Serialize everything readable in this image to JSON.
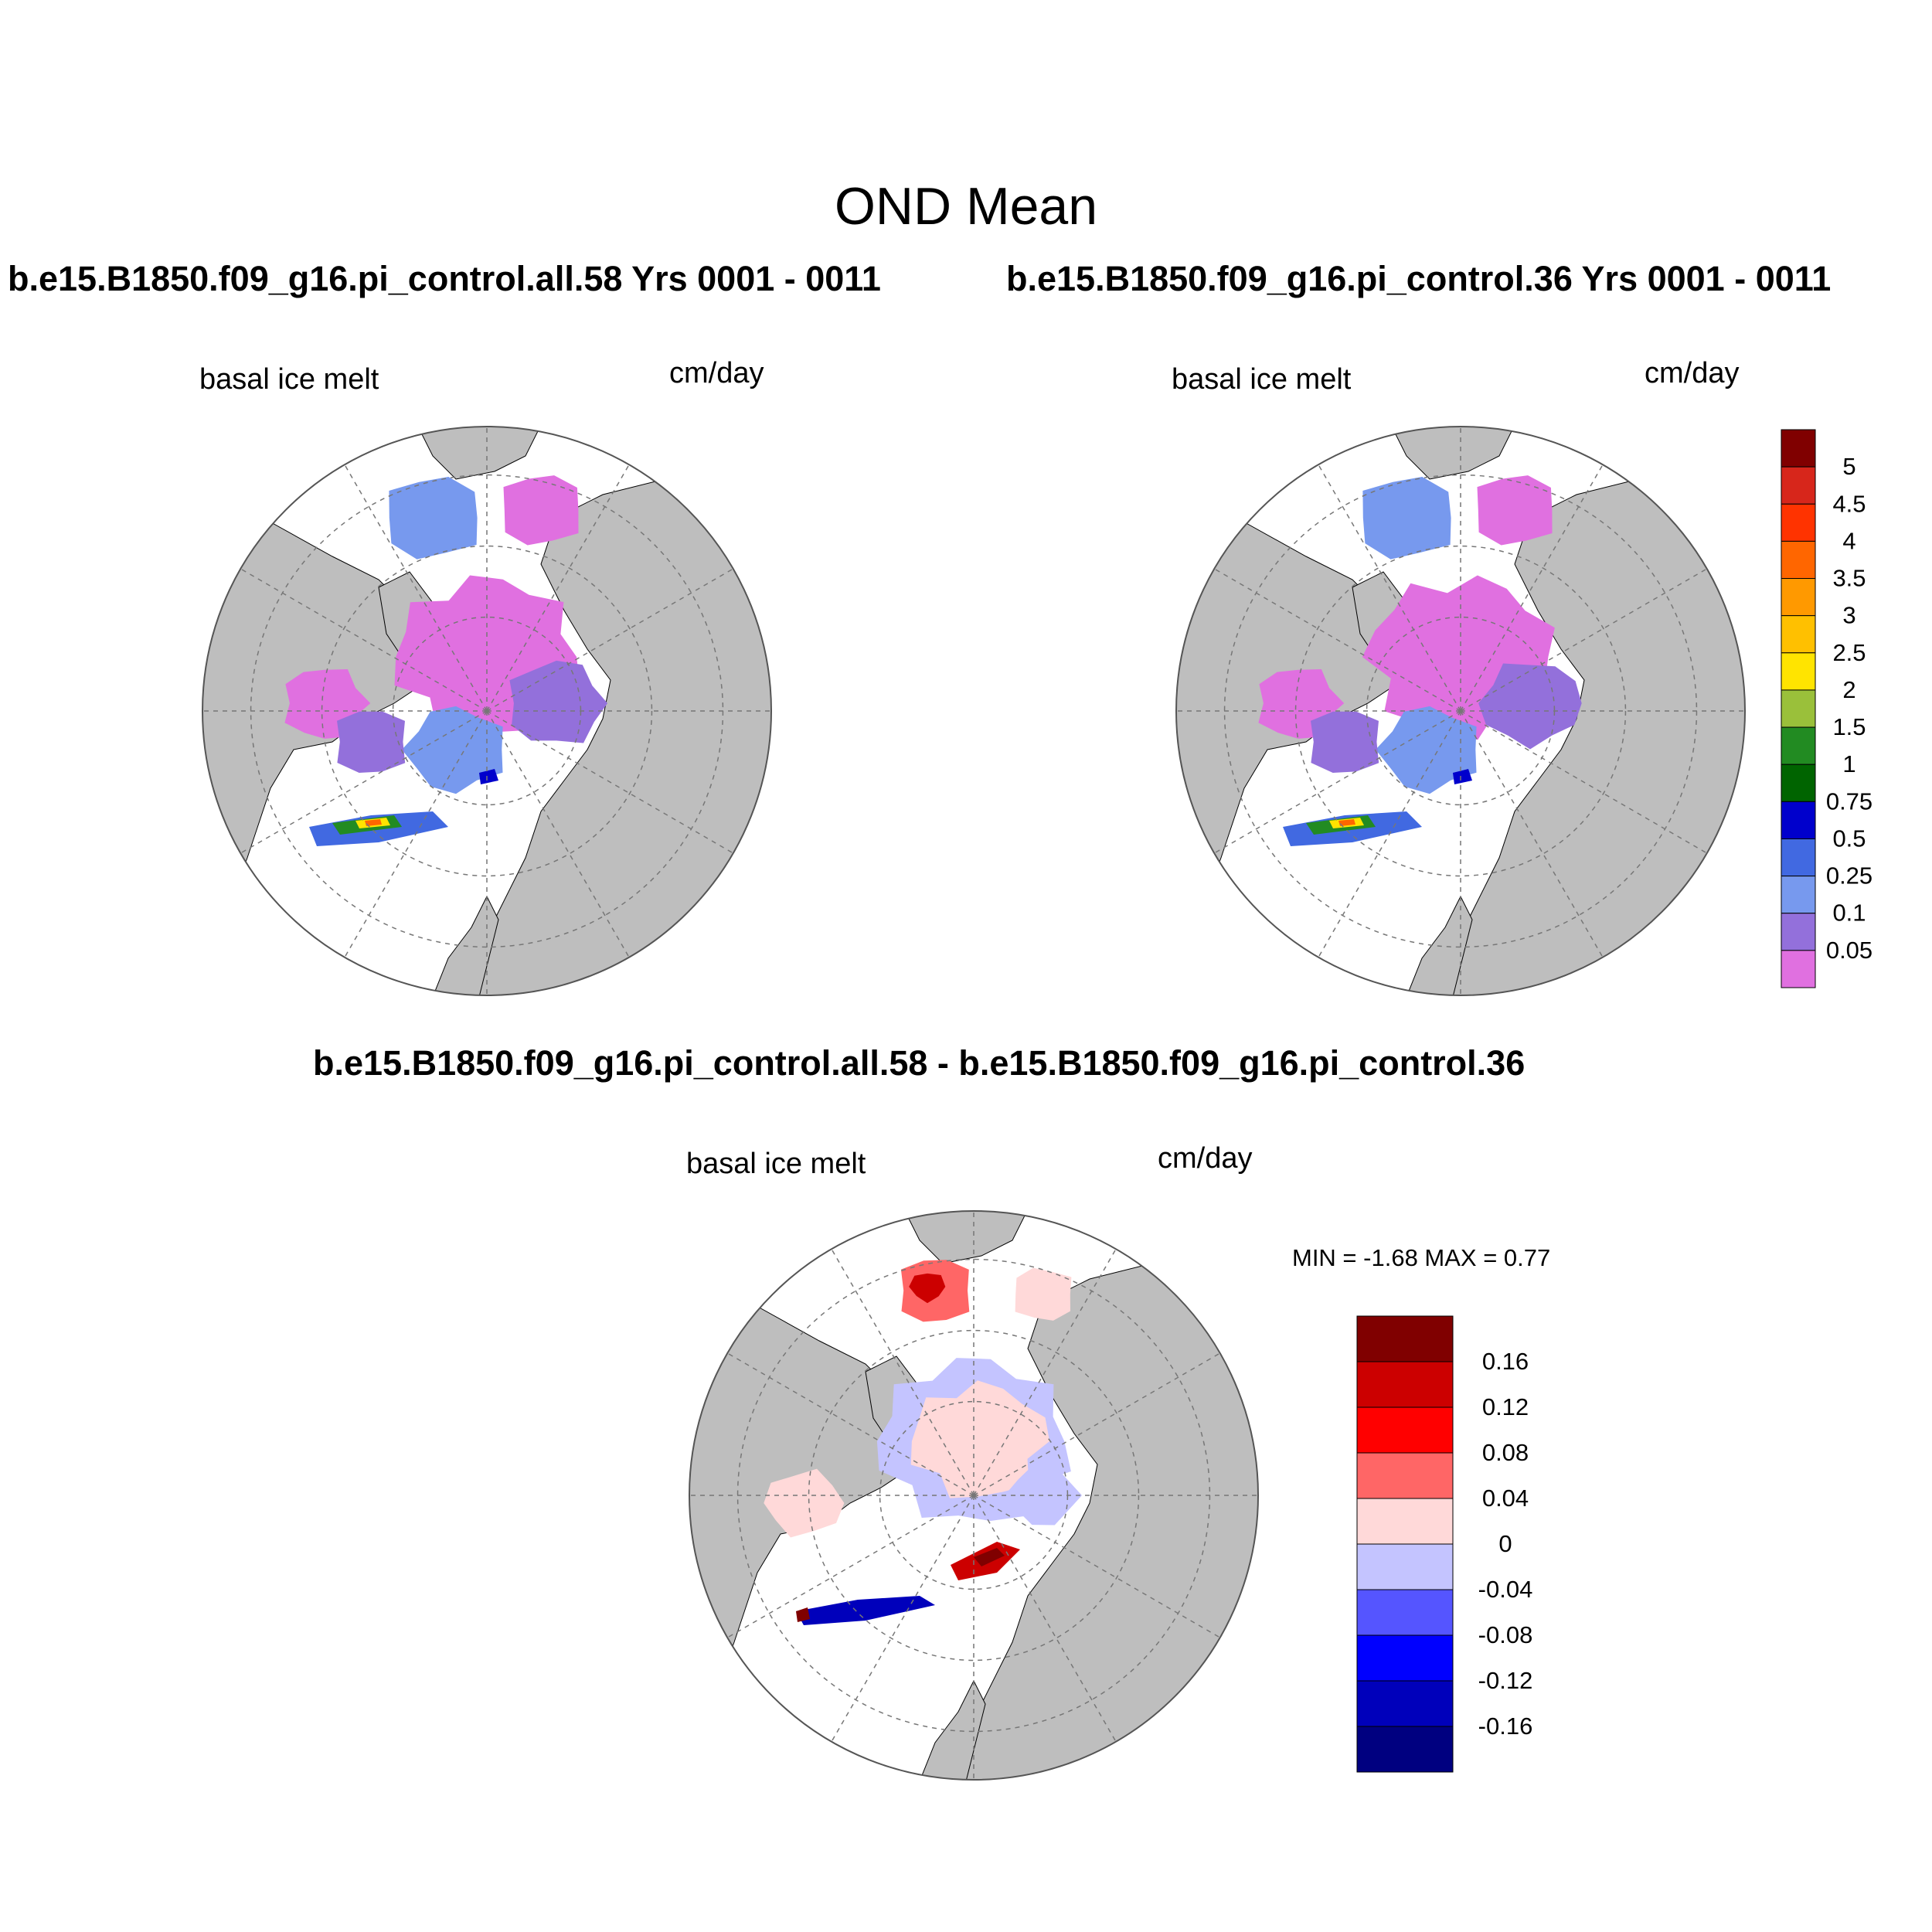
{
  "figure": {
    "title": "OND Mean"
  },
  "panels": [
    {
      "id": "case",
      "title": "b.e15.B1850.f09_g16.pi_control.all.58  Yrs 0001 - 0011",
      "variable": "basal ice melt",
      "units": "cm/day"
    },
    {
      "id": "control",
      "title": "b.e15.B1850.f09_g16.pi_control.36  Yrs 0001 - 0011",
      "variable": "basal ice melt",
      "units": "cm/day"
    },
    {
      "id": "difference",
      "title": "b.e15.B1850.f09_g16.pi_control.all.58 - b.e15.B1850.f09_g16.pi_control.36",
      "variable": "basal ice melt",
      "units": "cm/day",
      "stats": "MIN =  -1.68 MAX =   0.77"
    }
  ],
  "colors": {
    "land": "#bebebe",
    "ocean": "#ffffff",
    "grid": "#777777"
  },
  "colorbar_main": {
    "labels": [
      "5",
      "4.5",
      "4",
      "3.5",
      "3",
      "2.5",
      "2",
      "1.5",
      "1",
      "0.75",
      "0.5",
      "0.25",
      "0.1",
      "0.05"
    ],
    "colors": [
      "#800000",
      "#d7261b",
      "#ff3300",
      "#ff6600",
      "#ff9900",
      "#ffc000",
      "#ffe400",
      "#9ac03a",
      "#228b22",
      "#006400",
      "#0000cc",
      "#4169e1",
      "#7799ee",
      "#9370db",
      "#e070e0"
    ]
  },
  "colorbar_diff": {
    "labels": [
      "0.16",
      "0.12",
      "0.08",
      "0.04",
      "0",
      "-0.04",
      "-0.08",
      "-0.12",
      "-0.16"
    ],
    "colors": [
      "#800000",
      "#cc0000",
      "#ff0000",
      "#ff6666",
      "#ffd9d9",
      "#c4c4ff",
      "#5555ff",
      "#0000ff",
      "#0000bb",
      "#000080"
    ]
  }
}
